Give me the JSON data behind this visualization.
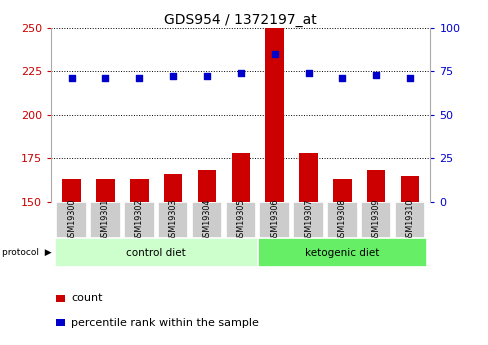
{
  "title": "GDS954 / 1372197_at",
  "samples": [
    "GSM19300",
    "GSM19301",
    "GSM19302",
    "GSM19303",
    "GSM19304",
    "GSM19305",
    "GSM19306",
    "GSM19307",
    "GSM19308",
    "GSM19309",
    "GSM19310"
  ],
  "counts": [
    163,
    163,
    163,
    166,
    168,
    178,
    251,
    178,
    163,
    168,
    165
  ],
  "percentiles": [
    71,
    71,
    71,
    72,
    72,
    74,
    85,
    74,
    71,
    73,
    71
  ],
  "ylim_left": [
    150,
    250
  ],
  "ylim_right": [
    0,
    100
  ],
  "yticks_left": [
    150,
    175,
    200,
    225,
    250
  ],
  "yticks_right": [
    0,
    25,
    50,
    75,
    100
  ],
  "groups": [
    {
      "label": "control diet",
      "start": 0,
      "end": 5,
      "color": "#ccffcc"
    },
    {
      "label": "ketogenic diet",
      "start": 6,
      "end": 10,
      "color": "#66ee66"
    }
  ],
  "bar_color": "#cc0000",
  "dot_color": "#0000cc",
  "bar_width": 0.55,
  "protocol_label": "protocol",
  "legend_count": "count",
  "legend_percentile": "percentile rank within the sample",
  "grid_color": "black",
  "left_axis_color": "#cc0000",
  "right_axis_color": "#0000cc",
  "sample_box_color": "#cccccc",
  "title_fontsize": 10,
  "tick_fontsize": 8,
  "label_fontsize": 7,
  "legend_fontsize": 8
}
